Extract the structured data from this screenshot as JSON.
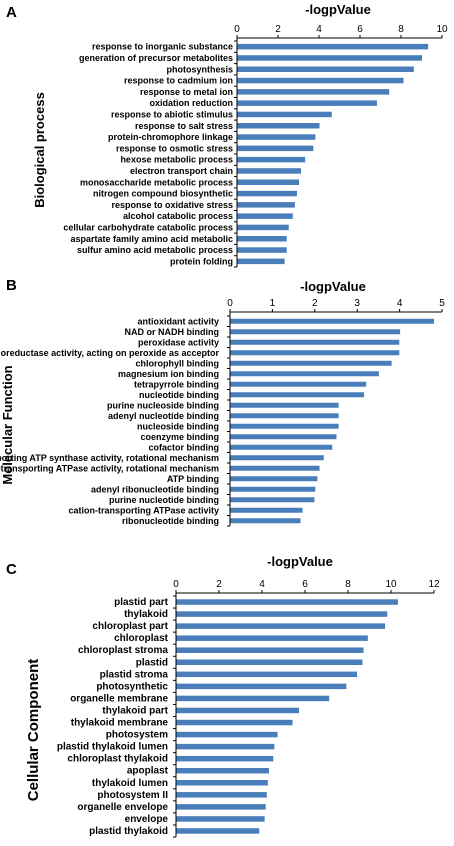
{
  "chart_data": [
    {
      "type": "bar",
      "orientation": "horizontal",
      "panel": "A",
      "title": "-logpValue",
      "ylabel": "Biological process",
      "xlim": [
        0,
        10
      ],
      "xticks": [
        "0",
        "2",
        "4",
        "6",
        "8",
        "10"
      ],
      "x_axis_position": "top",
      "categories": [
        "response to inorganic substance",
        "generation of precursor metabolites",
        "photosynthesis",
        "response to cadmium ion",
        "response to metal ion",
        "oxidation reduction",
        "response to abiotic stimulus",
        "response to salt stress",
        "protein-chromophore linkage",
        "response to osmotic stress",
        "hexose metabolic process",
        "electron transport chain",
        "monosaccharide metabolic process",
        "nitrogen compound biosynthetic",
        "response to oxidative stress",
        "alcohol catabolic process",
        "cellular carbohydrate catabolic process",
        "aspartate family amino acid metabolic",
        "sulfur amino acid metabolic process",
        "protein folding"
      ],
      "values": [
        9.3,
        9.0,
        8.6,
        8.1,
        7.4,
        6.8,
        4.6,
        4.0,
        3.8,
        3.7,
        3.3,
        3.1,
        3.0,
        2.9,
        2.8,
        2.7,
        2.5,
        2.4,
        2.4,
        2.3
      ],
      "color": "#4a7ebb",
      "grid": false
    },
    {
      "type": "bar",
      "orientation": "horizontal",
      "panel": "B",
      "title": "-logpValue",
      "ylabel": "Molecular Function",
      "xlim": [
        0,
        5
      ],
      "xticks": [
        "0",
        "1",
        "2",
        "3",
        "4",
        "5"
      ],
      "x_axis_position": "top",
      "categories": [
        "antioxidant activity",
        "NAD or NADH binding",
        "peroxidase activity",
        "oxidoreductase activity, acting on peroxide as acceptor",
        "chlorophyll binding",
        "magnesium ion binding",
        "tetrapyrrole binding",
        "nucleotide binding",
        "purine nucleoside binding",
        "adenyl nucleotide binding",
        "nucleoside binding",
        "coenzyme binding",
        "cofactor binding",
        "hydrogen ion transporting ATP synthase activity, rotational mechanism",
        "proton-transporting ATPase activity, rotational mechanism",
        "ATP binding",
        "adenyl ribonucleotide binding",
        "purine nucleotide binding",
        "cation-transporting ATPase activity",
        "ribonucleotide binding"
      ],
      "values": [
        4.8,
        4.0,
        3.98,
        3.98,
        3.8,
        3.5,
        3.2,
        3.15,
        2.55,
        2.55,
        2.55,
        2.5,
        2.4,
        2.2,
        2.1,
        2.05,
        2.0,
        1.98,
        1.7,
        1.65
      ],
      "color": "#4a7ebb",
      "grid": false
    },
    {
      "type": "bar",
      "orientation": "horizontal",
      "panel": "C",
      "title": "-logpValue",
      "ylabel": "Cellular Component",
      "xlim": [
        0,
        12
      ],
      "xticks": [
        "0",
        "2",
        "4",
        "6",
        "8",
        "10",
        "12"
      ],
      "x_axis_position": "top",
      "categories": [
        "plastid part",
        "thylakoid",
        "chloroplast part",
        "chloroplast",
        "chloroplast stroma",
        "plastid",
        "plastid stroma",
        "photosynthetic",
        "organelle membrane",
        "thylakoid part",
        "thylakoid membrane",
        "photosystem",
        "plastid thylakoid lumen",
        "chloroplast thylakoid",
        "apoplast",
        "thylakoid lumen",
        "photosystem II",
        "organelle envelope",
        "envelope",
        "plastid thylakoid"
      ],
      "values": [
        10.3,
        9.8,
        9.7,
        8.9,
        8.7,
        8.65,
        8.4,
        7.9,
        7.1,
        5.7,
        5.4,
        4.7,
        4.55,
        4.5,
        4.3,
        4.25,
        4.2,
        4.15,
        4.1,
        3.85
      ],
      "color": "#4a7ebb",
      "grid": false
    }
  ]
}
